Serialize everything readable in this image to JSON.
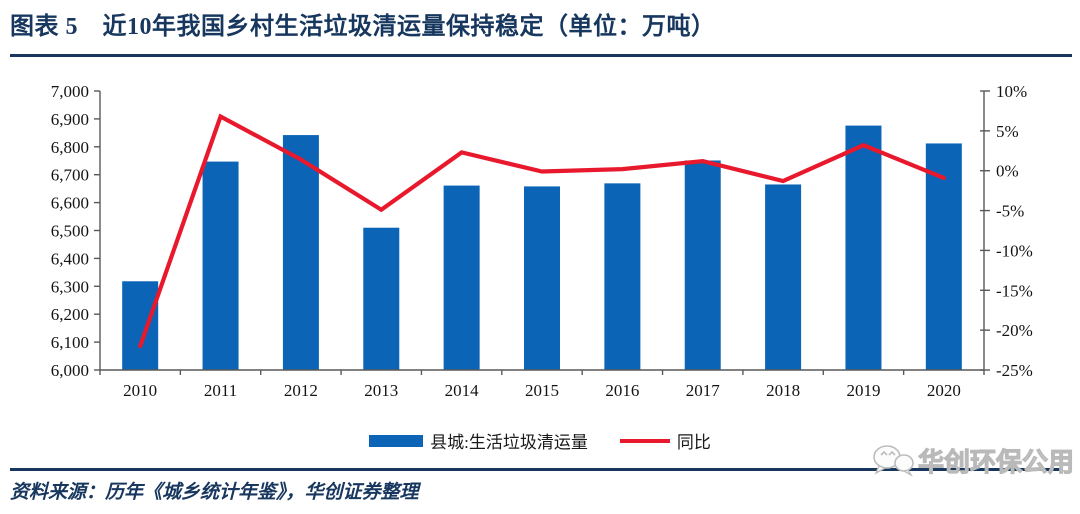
{
  "header": {
    "title": "图表 5　近10年我国乡村生活垃圾清运量保持稳定（单位：万吨）"
  },
  "watermark": {
    "text": "华创环保公用",
    "icon": "wechat-icon"
  },
  "footer": {
    "source": "资料来源：历年《城乡统计年鉴》，华创证券整理"
  },
  "colors": {
    "navy": "#17375E",
    "bar_blue": "#0B64B6",
    "line_red": "#E9192D",
    "axis_gray": "#595959"
  },
  "chart_data": {
    "type": "combo-bar-line",
    "title": "",
    "categories": [
      "2010",
      "2011",
      "2012",
      "2013",
      "2014",
      "2015",
      "2016",
      "2017",
      "2018",
      "2019",
      "2020"
    ],
    "series": [
      {
        "name": "县城:生活垃圾清运量",
        "type": "bar",
        "axis": "left",
        "color": "#0B64B6",
        "values": [
          6318,
          6747,
          6842,
          6510,
          6661,
          6658,
          6669,
          6751,
          6665,
          6876,
          6812
        ]
      },
      {
        "name": "同比",
        "type": "line",
        "axis": "right",
        "color": "#E9192D",
        "values": [
          -22.0,
          6.8,
          1.4,
          -4.9,
          2.3,
          -0.1,
          0.2,
          1.2,
          -1.3,
          3.2,
          -0.9
        ]
      }
    ],
    "left_axis": {
      "min": 6000,
      "max": 7000,
      "step": 100,
      "tick_labels": [
        "7,000",
        "6,900",
        "6,800",
        "6,700",
        "6,600",
        "6,500",
        "6,400",
        "6,300",
        "6,200",
        "6,100",
        "6,000"
      ]
    },
    "right_axis": {
      "min": -25,
      "max": 10,
      "step": 5,
      "tick_labels": [
        "10%",
        "5%",
        "0%",
        "-5%",
        "-10%",
        "-15%",
        "-20%",
        "-25%"
      ]
    },
    "legend_position": "bottom",
    "grid": false
  }
}
